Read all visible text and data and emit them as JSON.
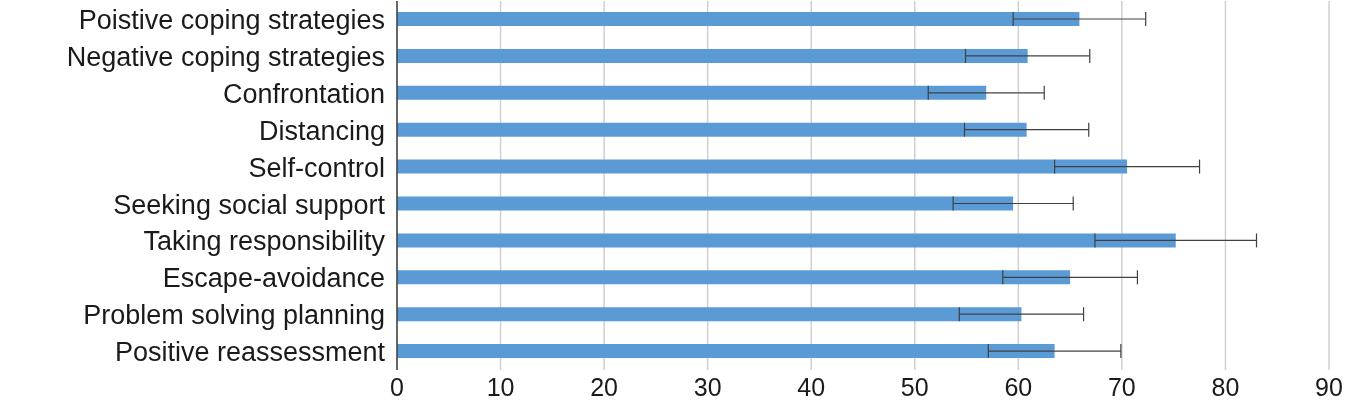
{
  "chart_data": {
    "type": "bar",
    "orientation": "horizontal",
    "categories": [
      "Poistive coping strategies",
      "Negative coping strategies",
      "Confrontation",
      "Distancing",
      "Self-control",
      "Seeking social support",
      "Taking responsibility",
      "Escape-avoidance",
      "Problem solving planning",
      "Positive reassessment"
    ],
    "values": [
      65.9,
      60.9,
      56.9,
      60.8,
      70.5,
      59.5,
      75.2,
      65.0,
      60.3,
      63.5
    ],
    "errors": [
      6.4,
      6.0,
      5.6,
      6.0,
      7.0,
      5.8,
      7.8,
      6.5,
      6.0,
      6.4
    ],
    "color": "#5b9bd5",
    "xlim": [
      0,
      90
    ],
    "xticks": [
      0,
      10,
      20,
      30,
      40,
      50,
      60,
      70,
      80,
      90
    ],
    "grid": "x"
  }
}
